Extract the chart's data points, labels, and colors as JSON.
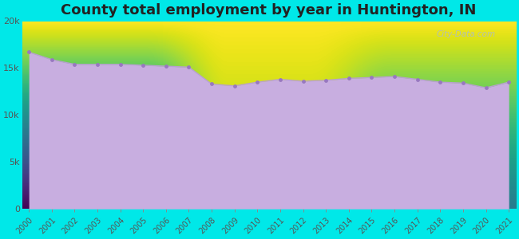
{
  "title": "County total employment by year in Huntington, IN",
  "years": [
    2000,
    2001,
    2002,
    2003,
    2004,
    2005,
    2006,
    2007,
    2008,
    2009,
    2010,
    2011,
    2012,
    2013,
    2014,
    2015,
    2016,
    2017,
    2018,
    2019,
    2020,
    2021
  ],
  "values": [
    16700,
    15900,
    15400,
    15400,
    15400,
    15300,
    15200,
    15100,
    13300,
    13100,
    13500,
    13800,
    13600,
    13700,
    13900,
    14000,
    14100,
    13800,
    13500,
    13400,
    12900,
    13500
  ],
  "line_color": "#b8a0d0",
  "fill_color": "#c8aee0",
  "fill_alpha": 1.0,
  "marker_color": "#9878c0",
  "marker_size": 3.5,
  "background_outer": "#00e8e8",
  "background_top": "#ffffff",
  "background_bottom": "#d8f8e8",
  "title_fontsize": 13,
  "title_color": "#222222",
  "tick_color": "#555555",
  "ylim": [
    0,
    20000
  ],
  "yticks": [
    0,
    5000,
    10000,
    15000,
    20000
  ],
  "ytick_labels": [
    "0",
    "5k",
    "10k",
    "15k",
    "20k"
  ],
  "watermark": "City-Data.com"
}
